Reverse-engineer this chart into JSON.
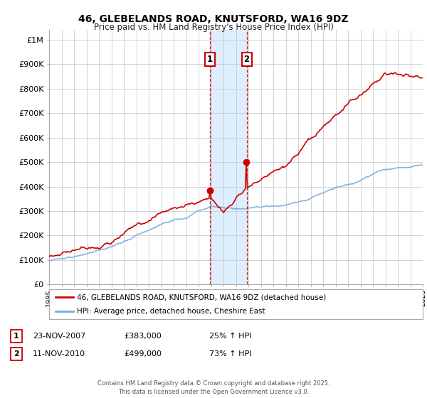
{
  "title": "46, GLEBELANDS ROAD, KNUTSFORD, WA16 9DZ",
  "subtitle": "Price paid vs. HM Land Registry's House Price Index (HPI)",
  "red_line_label": "46, GLEBELANDS ROAD, KNUTSFORD, WA16 9DZ (detached house)",
  "blue_line_label": "HPI: Average price, detached house, Cheshire East",
  "transaction1_date": "23-NOV-2007",
  "transaction1_price": "£383,000",
  "transaction1_hpi": "25% ↑ HPI",
  "transaction2_date": "11-NOV-2010",
  "transaction2_price": "£499,000",
  "transaction2_hpi": "73% ↑ HPI",
  "transaction1_year": 2007.9,
  "transaction2_year": 2010.86,
  "xmin": 1995,
  "xmax": 2025,
  "ymin": 0,
  "ymax": 1000000,
  "background_color": "#ffffff",
  "plot_bg_color": "#ffffff",
  "grid_color": "#cccccc",
  "red_color": "#cc0000",
  "blue_color": "#7aaadd",
  "shade_color": "#ddeeff",
  "footer_text": "Contains HM Land Registry data © Crown copyright and database right 2025.\nThis data is licensed under the Open Government Licence v3.0."
}
